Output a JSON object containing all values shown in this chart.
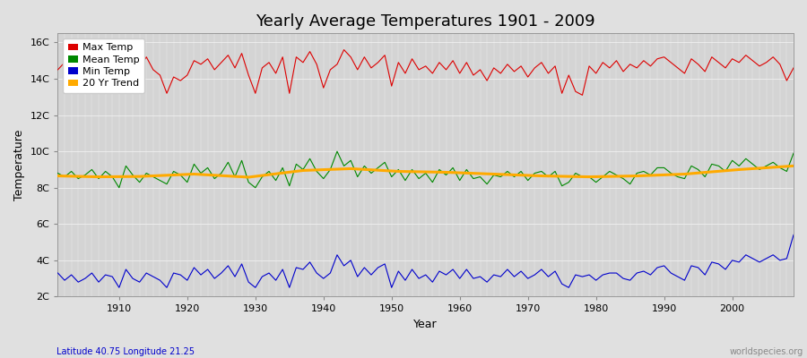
{
  "title": "Yearly Average Temperatures 1901 - 2009",
  "xlabel": "Year",
  "ylabel": "Temperature",
  "lat_lon_label": "Latitude 40.75 Longitude 21.25",
  "watermark": "worldspecies.org",
  "years": [
    1901,
    1902,
    1903,
    1904,
    1905,
    1906,
    1907,
    1908,
    1909,
    1910,
    1911,
    1912,
    1913,
    1914,
    1915,
    1916,
    1917,
    1918,
    1919,
    1920,
    1921,
    1922,
    1923,
    1924,
    1925,
    1926,
    1927,
    1928,
    1929,
    1930,
    1931,
    1932,
    1933,
    1934,
    1935,
    1936,
    1937,
    1938,
    1939,
    1940,
    1941,
    1942,
    1943,
    1944,
    1945,
    1946,
    1947,
    1948,
    1949,
    1950,
    1951,
    1952,
    1953,
    1954,
    1955,
    1956,
    1957,
    1958,
    1959,
    1960,
    1961,
    1962,
    1963,
    1964,
    1965,
    1966,
    1967,
    1968,
    1969,
    1970,
    1971,
    1972,
    1973,
    1974,
    1975,
    1976,
    1977,
    1978,
    1979,
    1980,
    1981,
    1982,
    1983,
    1984,
    1985,
    1986,
    1987,
    1988,
    1989,
    1990,
    1991,
    1992,
    1993,
    1994,
    1995,
    1996,
    1997,
    1998,
    1999,
    2000,
    2001,
    2002,
    2003,
    2004,
    2005,
    2006,
    2007,
    2008,
    2009
  ],
  "max_temp": [
    14.5,
    14.9,
    14.6,
    14.8,
    15.0,
    14.7,
    14.8,
    14.5,
    14.3,
    14.0,
    14.8,
    14.5,
    14.6,
    15.2,
    14.5,
    14.2,
    13.2,
    14.1,
    13.9,
    14.2,
    15.0,
    14.8,
    15.1,
    14.5,
    14.9,
    15.3,
    14.6,
    15.4,
    14.2,
    13.2,
    14.6,
    14.9,
    14.3,
    15.2,
    13.2,
    15.2,
    14.9,
    15.5,
    14.8,
    13.5,
    14.5,
    14.8,
    15.6,
    15.2,
    14.5,
    15.2,
    14.6,
    14.9,
    15.3,
    13.6,
    14.9,
    14.3,
    15.1,
    14.5,
    14.7,
    14.3,
    14.9,
    14.5,
    15.0,
    14.3,
    14.9,
    14.2,
    14.5,
    13.9,
    14.6,
    14.3,
    14.8,
    14.4,
    14.7,
    14.1,
    14.6,
    14.9,
    14.3,
    14.7,
    13.2,
    14.2,
    13.3,
    13.1,
    14.7,
    14.3,
    14.9,
    14.6,
    15.0,
    14.4,
    14.8,
    14.6,
    15.0,
    14.7,
    15.1,
    15.2,
    14.9,
    14.6,
    14.3,
    15.1,
    14.8,
    14.4,
    15.2,
    14.9,
    14.6,
    15.1,
    14.9,
    15.3,
    15.0,
    14.7,
    14.9,
    15.2,
    14.8,
    13.9,
    14.6
  ],
  "mean_temp": [
    8.8,
    8.6,
    8.9,
    8.5,
    8.7,
    9.0,
    8.5,
    8.9,
    8.6,
    8.0,
    9.2,
    8.7,
    8.3,
    8.8,
    8.6,
    8.4,
    8.2,
    8.9,
    8.7,
    8.3,
    9.3,
    8.8,
    9.1,
    8.5,
    8.8,
    9.4,
    8.6,
    9.5,
    8.3,
    8.0,
    8.6,
    8.9,
    8.4,
    9.1,
    8.1,
    9.3,
    9.0,
    9.6,
    8.9,
    8.5,
    9.0,
    10.0,
    9.2,
    9.5,
    8.6,
    9.2,
    8.8,
    9.1,
    9.4,
    8.6,
    9.0,
    8.4,
    9.0,
    8.5,
    8.8,
    8.3,
    9.0,
    8.7,
    9.1,
    8.4,
    9.0,
    8.5,
    8.6,
    8.2,
    8.7,
    8.6,
    8.9,
    8.6,
    8.9,
    8.4,
    8.8,
    8.9,
    8.6,
    8.9,
    8.1,
    8.3,
    8.8,
    8.6,
    8.6,
    8.3,
    8.6,
    8.9,
    8.7,
    8.5,
    8.2,
    8.8,
    8.9,
    8.7,
    9.1,
    9.1,
    8.8,
    8.6,
    8.5,
    9.2,
    9.0,
    8.6,
    9.3,
    9.2,
    8.9,
    9.5,
    9.2,
    9.6,
    9.3,
    9.0,
    9.2,
    9.4,
    9.1,
    8.9,
    9.9
  ],
  "min_temp": [
    3.3,
    2.9,
    3.2,
    2.8,
    3.0,
    3.3,
    2.8,
    3.2,
    3.1,
    2.5,
    3.5,
    3.0,
    2.8,
    3.3,
    3.1,
    2.9,
    2.5,
    3.3,
    3.2,
    2.9,
    3.6,
    3.2,
    3.5,
    3.0,
    3.3,
    3.7,
    3.1,
    3.8,
    2.8,
    2.5,
    3.1,
    3.3,
    2.9,
    3.5,
    2.5,
    3.6,
    3.5,
    3.9,
    3.3,
    3.0,
    3.3,
    4.3,
    3.7,
    4.0,
    3.1,
    3.6,
    3.2,
    3.6,
    3.8,
    2.5,
    3.4,
    2.9,
    3.5,
    3.0,
    3.2,
    2.8,
    3.4,
    3.2,
    3.5,
    3.0,
    3.5,
    3.0,
    3.1,
    2.8,
    3.2,
    3.1,
    3.5,
    3.1,
    3.4,
    3.0,
    3.2,
    3.5,
    3.1,
    3.4,
    2.7,
    2.5,
    3.2,
    3.1,
    3.2,
    2.9,
    3.2,
    3.3,
    3.3,
    3.0,
    2.9,
    3.3,
    3.4,
    3.2,
    3.6,
    3.7,
    3.3,
    3.1,
    2.9,
    3.7,
    3.6,
    3.2,
    3.9,
    3.8,
    3.5,
    4.0,
    3.9,
    4.3,
    4.1,
    3.9,
    4.1,
    4.3,
    4.0,
    4.1,
    5.4
  ],
  "trend_years": [
    1901,
    1907,
    1913,
    1921,
    1929,
    1937,
    1944,
    1951,
    1958,
    1965,
    1972,
    1979,
    1986,
    1993,
    2001,
    2009
  ],
  "trend_values": [
    8.65,
    8.6,
    8.62,
    8.75,
    8.58,
    8.95,
    9.05,
    8.9,
    8.85,
    8.75,
    8.65,
    8.6,
    8.65,
    8.75,
    9.0,
    9.2
  ],
  "ylim": [
    2.0,
    16.5
  ],
  "yticks": [
    2,
    4,
    6,
    8,
    10,
    12,
    14,
    16
  ],
  "ytick_labels": [
    "2C",
    "4C",
    "6C",
    "8C",
    "10C",
    "12C",
    "14C",
    "16C"
  ],
  "xlim": [
    1901,
    2009
  ],
  "xticks": [
    1910,
    1920,
    1930,
    1940,
    1950,
    1960,
    1970,
    1980,
    1990,
    2000
  ],
  "max_color": "#dd0000",
  "mean_color": "#008800",
  "min_color": "#0000cc",
  "trend_color": "#ffaa00",
  "fig_bg_color": "#e0e0e0",
  "plot_bg_color": "#d4d4d4",
  "grid_color": "#f0f0f0",
  "title_fontsize": 13,
  "axis_label_fontsize": 9,
  "tick_fontsize": 8,
  "legend_fontsize": 8
}
